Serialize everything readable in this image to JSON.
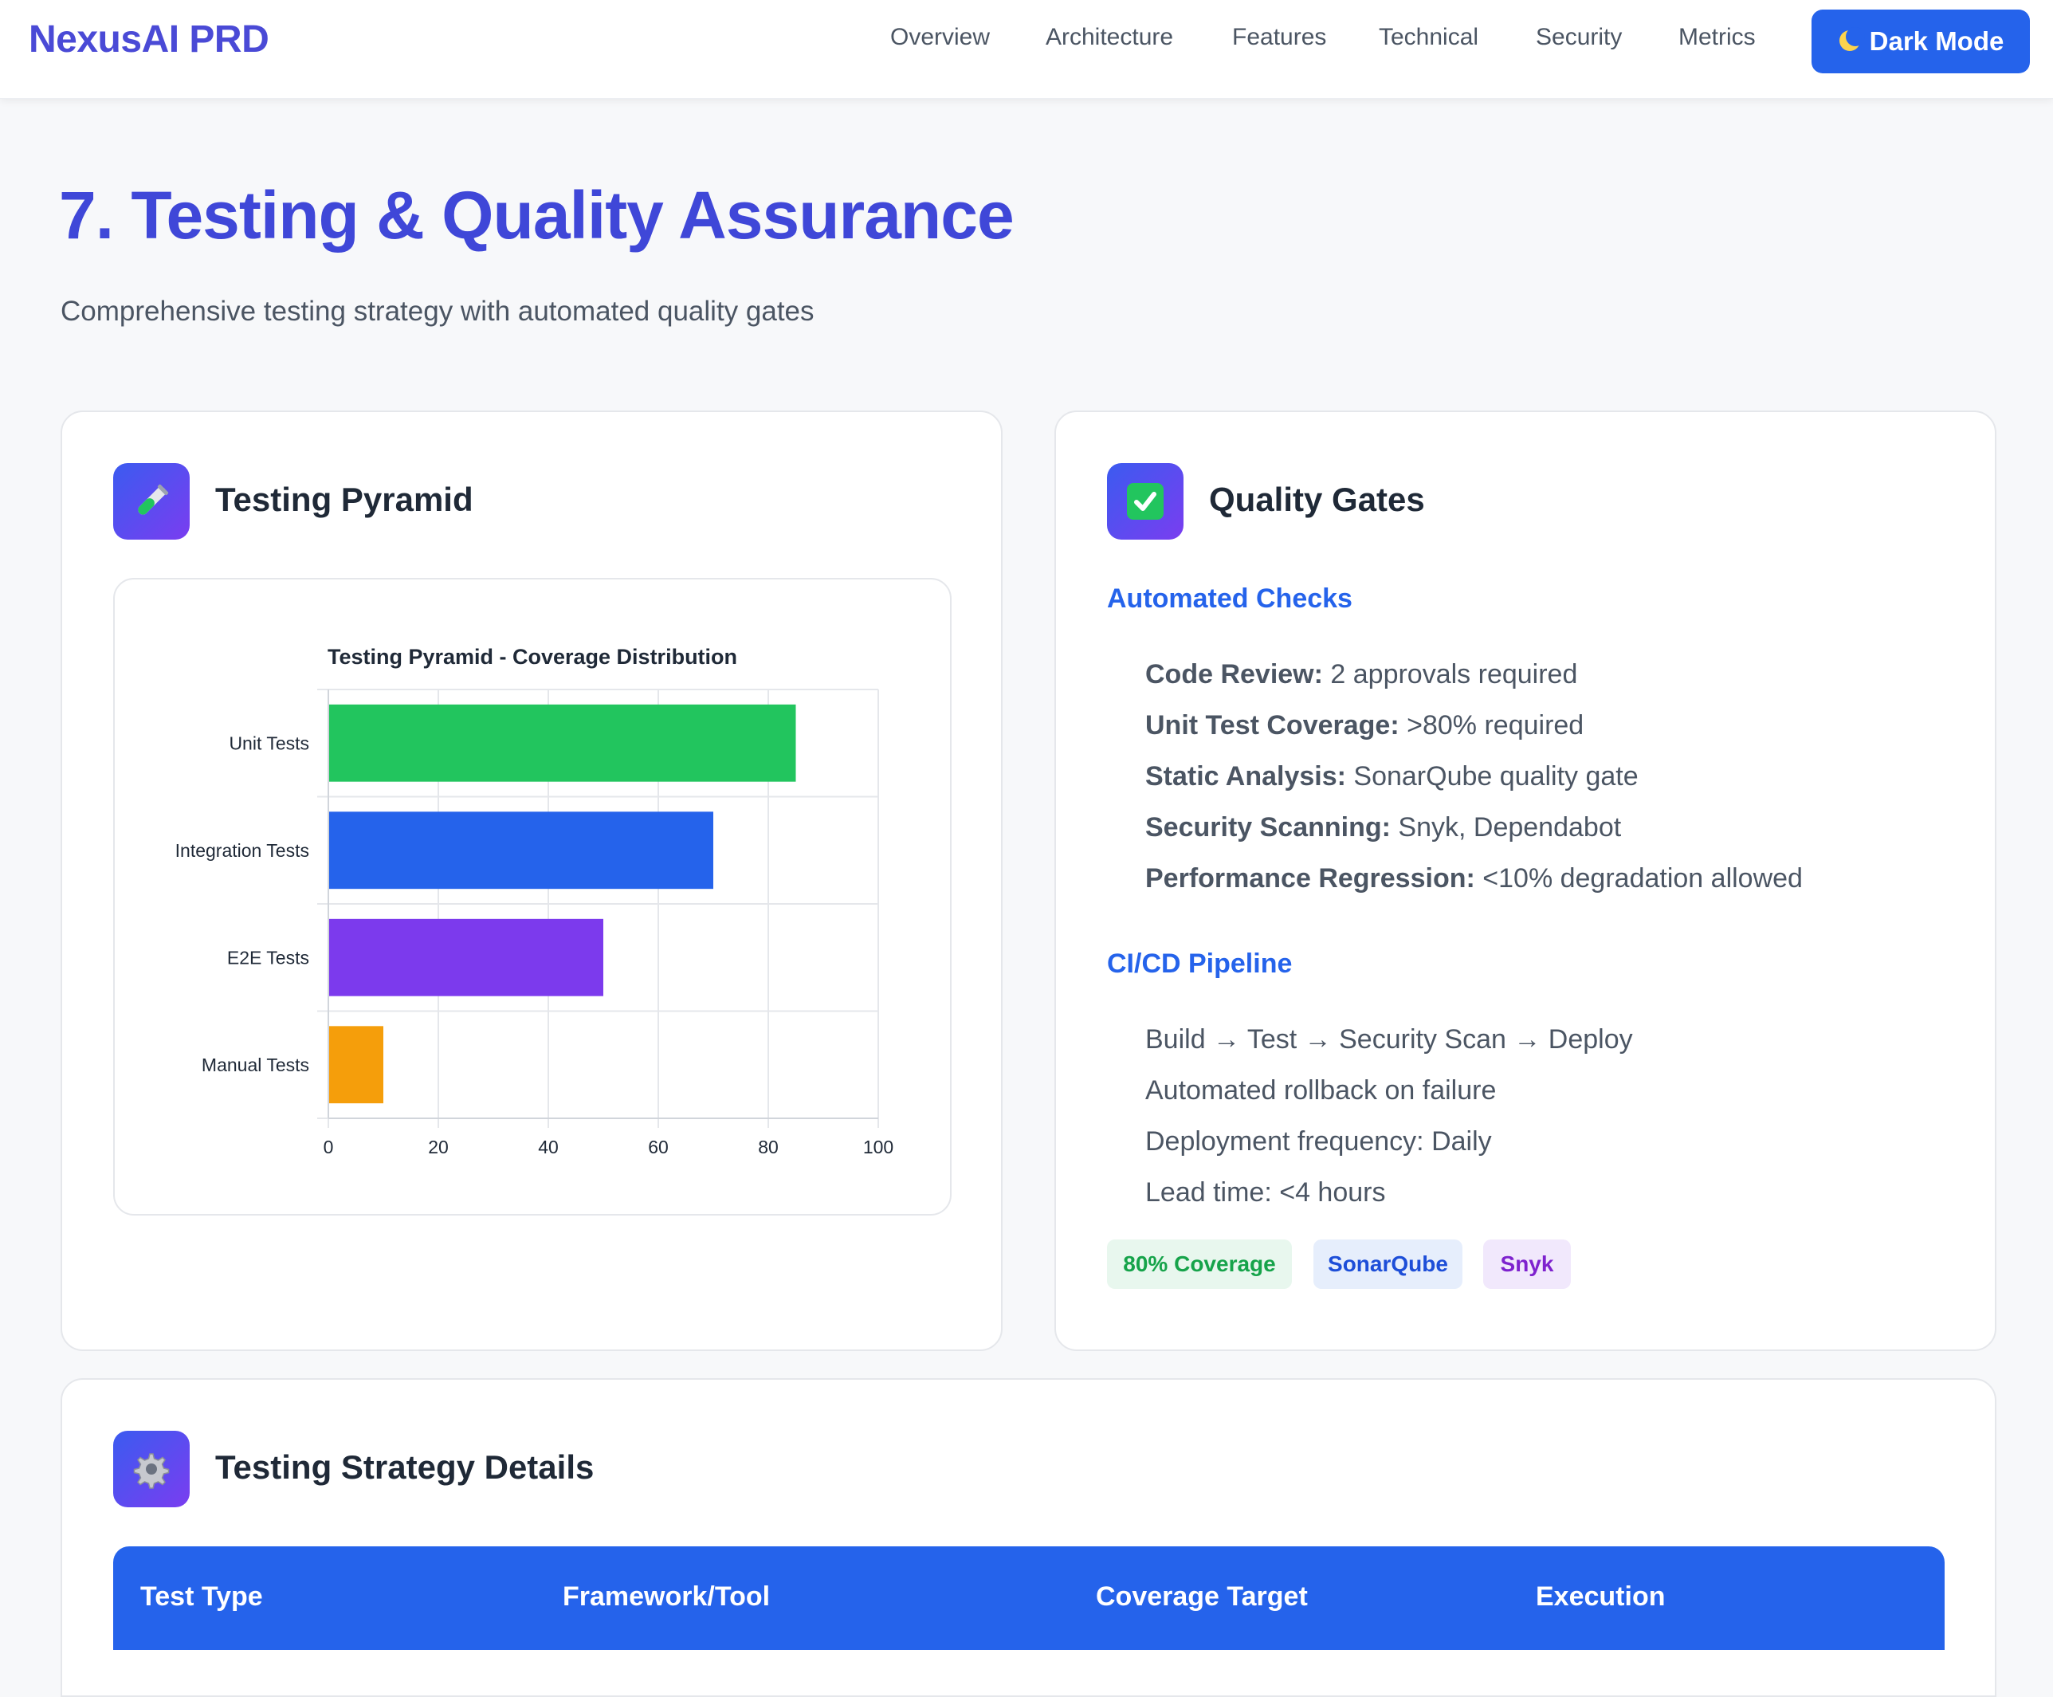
{
  "nav": {
    "brand": "NexusAI PRD",
    "links": [
      "Overview",
      "Architecture",
      "Features",
      "Technical",
      "Security",
      "Metrics"
    ],
    "dark_mode_label": "Dark Mode",
    "dark_mode_icon": "moon-icon"
  },
  "header": {
    "title": "7. Testing & Quality Assurance",
    "subtitle": "Comprehensive testing strategy with automated quality gates"
  },
  "pyramid_card": {
    "title": "Testing Pyramid",
    "icon": "test-tube-icon"
  },
  "chart_data": {
    "type": "bar",
    "orientation": "horizontal",
    "title": "Testing Pyramid - Coverage Distribution",
    "categories": [
      "Unit Tests",
      "Integration Tests",
      "E2E Tests",
      "Manual Tests"
    ],
    "values": [
      85,
      70,
      50,
      10
    ],
    "colors": [
      "#22c55e",
      "#2563eb",
      "#7c3aed",
      "#f59e0b"
    ],
    "xlim": [
      0,
      100
    ],
    "xticks": [
      0,
      20,
      40,
      60,
      80,
      100
    ],
    "grid": true,
    "legend": "none"
  },
  "quality_card": {
    "title": "Quality Gates",
    "icon": "check-mark-icon",
    "automated_heading": "Automated Checks",
    "automated_checks": [
      {
        "label": "Code Review:",
        "value": "2 approvals required"
      },
      {
        "label": "Unit Test Coverage:",
        "value": ">80% required"
      },
      {
        "label": "Static Analysis:",
        "value": "SonarQube quality gate"
      },
      {
        "label": "Security Scanning:",
        "value": "Snyk, Dependabot"
      },
      {
        "label": "Performance Regression:",
        "value": "<10% degradation allowed"
      }
    ],
    "pipeline_heading": "CI/CD Pipeline",
    "pipeline_items": [
      "Build → Test → Security Scan → Deploy",
      "Automated rollback on failure",
      "Deployment frequency: Daily",
      "Lead time: <4 hours"
    ],
    "badges": [
      {
        "label": "80% Coverage",
        "bg": "#e8f7ee",
        "fg": "#16a34a"
      },
      {
        "label": "SonarQube",
        "bg": "#e6eefc",
        "fg": "#1d4ed8"
      },
      {
        "label": "Snyk",
        "bg": "#f1e8fc",
        "fg": "#7e22ce"
      }
    ]
  },
  "strategy_card": {
    "title": "Testing Strategy Details",
    "icon": "gear-icon",
    "table_headers": [
      "Test Type",
      "Framework/Tool",
      "Coverage Target",
      "Execution"
    ]
  },
  "colors": {
    "accent": "#2563eb",
    "title": "#3f47d8",
    "brand": "#4a4ad6"
  }
}
